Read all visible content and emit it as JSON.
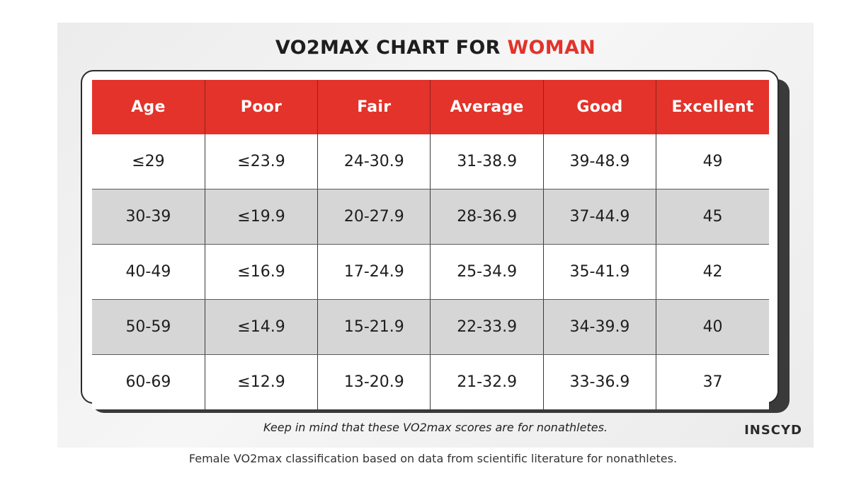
{
  "chart_data": {
    "type": "table",
    "title": "VO2MAX CHART FOR",
    "title_accent": "WOMAN",
    "columns": [
      "Age",
      "Poor",
      "Fair",
      "Average",
      "Good",
      "Excellent"
    ],
    "rows": [
      [
        "≤29",
        "≤23.9",
        "24-30.9",
        "31-38.9",
        "39-48.9",
        "49"
      ],
      [
        "30-39",
        "≤19.9",
        "20-27.9",
        "28-36.9",
        "37-44.9",
        "45"
      ],
      [
        "40-49",
        "≤16.9",
        "17-24.9",
        "25-34.9",
        "35-41.9",
        "42"
      ],
      [
        "50-59",
        "≤14.9",
        "15-21.9",
        "22-33.9",
        "34-39.9",
        "40"
      ],
      [
        "60-69",
        "≤12.9",
        "13-20.9",
        "21-32.9",
        "33-36.9",
        "37"
      ]
    ],
    "note": "Keep in mind that these VO2max scores are for nonathletes.",
    "logo": "INSCYD"
  },
  "caption": "Female VO2max classification based on data from scientific literature for nonathletes.",
  "colors": {
    "accent": "#e3332a",
    "header_text": "#ffffff",
    "row_alt": "#d6d6d6",
    "shadow": "#3a3a3a"
  }
}
